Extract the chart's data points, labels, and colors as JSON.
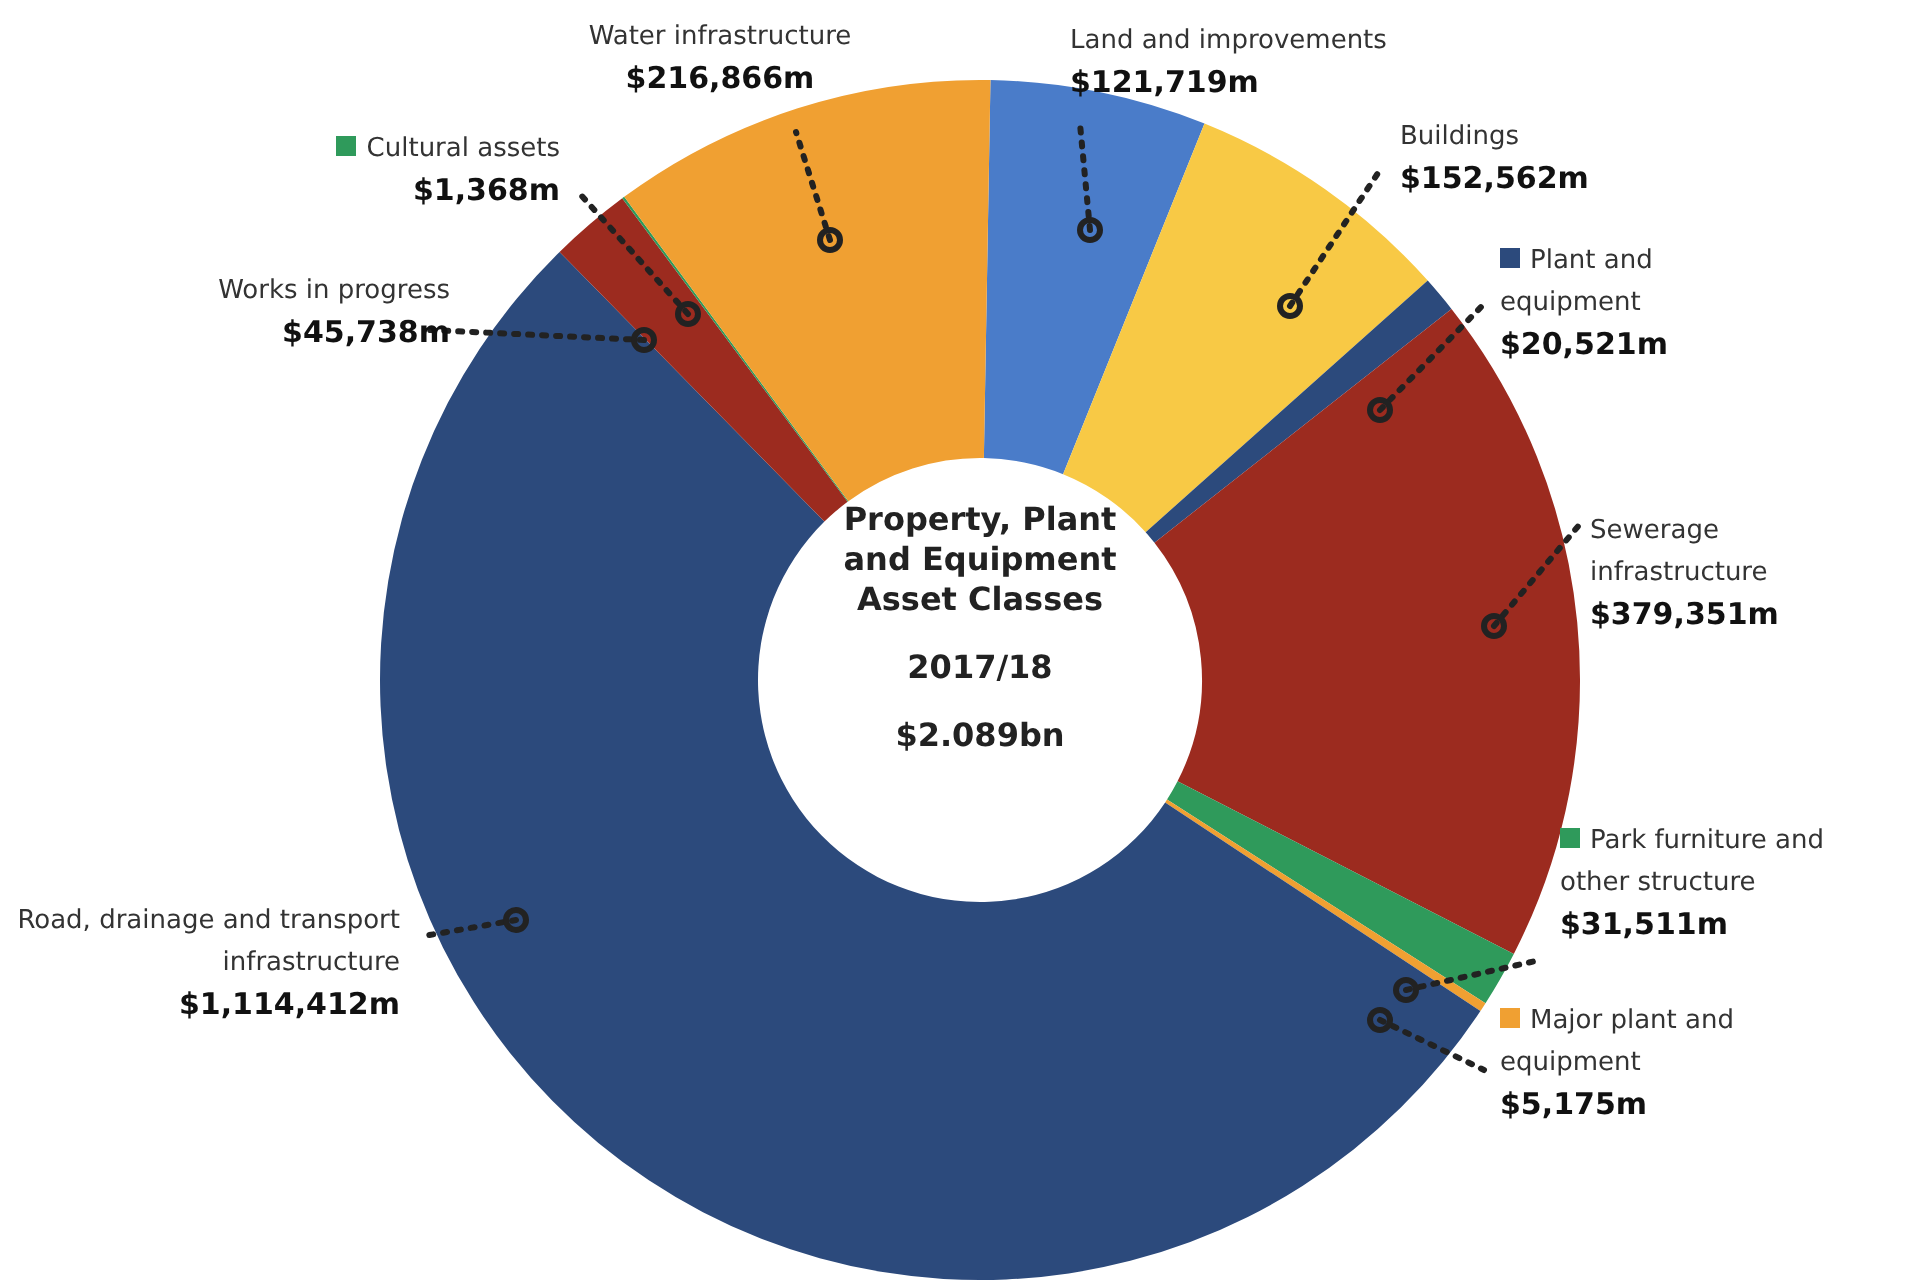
{
  "chart_data": {
    "type": "donut",
    "title": "Property, Plant and Equipment Asset Classes",
    "subtitle": "2017/18",
    "annotations": [
      "$2.089bn"
    ],
    "categories": [
      "Land and improvements",
      "Buildings",
      "Plant and equipment",
      "Sewerage infrastructure",
      "Park furniture and other structure",
      "Major plant and equipment",
      "Road, drainage and transport infrastructure",
      "Works in progress",
      "Cultural assets",
      "Water infrastructure"
    ],
    "values": [
      121719,
      152562,
      20521,
      379351,
      31511,
      5175,
      1114412,
      45738,
      1368,
      216866
    ],
    "value_labels": [
      "$121,719m",
      "$152,562m",
      "$20,521m",
      "$379,351m",
      "$31,511m",
      "$5,175m",
      "$1,114,412m",
      "$45,738m",
      "$1,368m",
      "$216,866m"
    ],
    "colors": [
      "#4a7cc9",
      "#f8c945",
      "#2c4a7c",
      "#9c2b1f",
      "#2f9a5b",
      "#f0a032",
      "#2c4a7c",
      "#9c2b1f",
      "#2f9a5b",
      "#f0a032"
    ],
    "legend": "right"
  }
}
